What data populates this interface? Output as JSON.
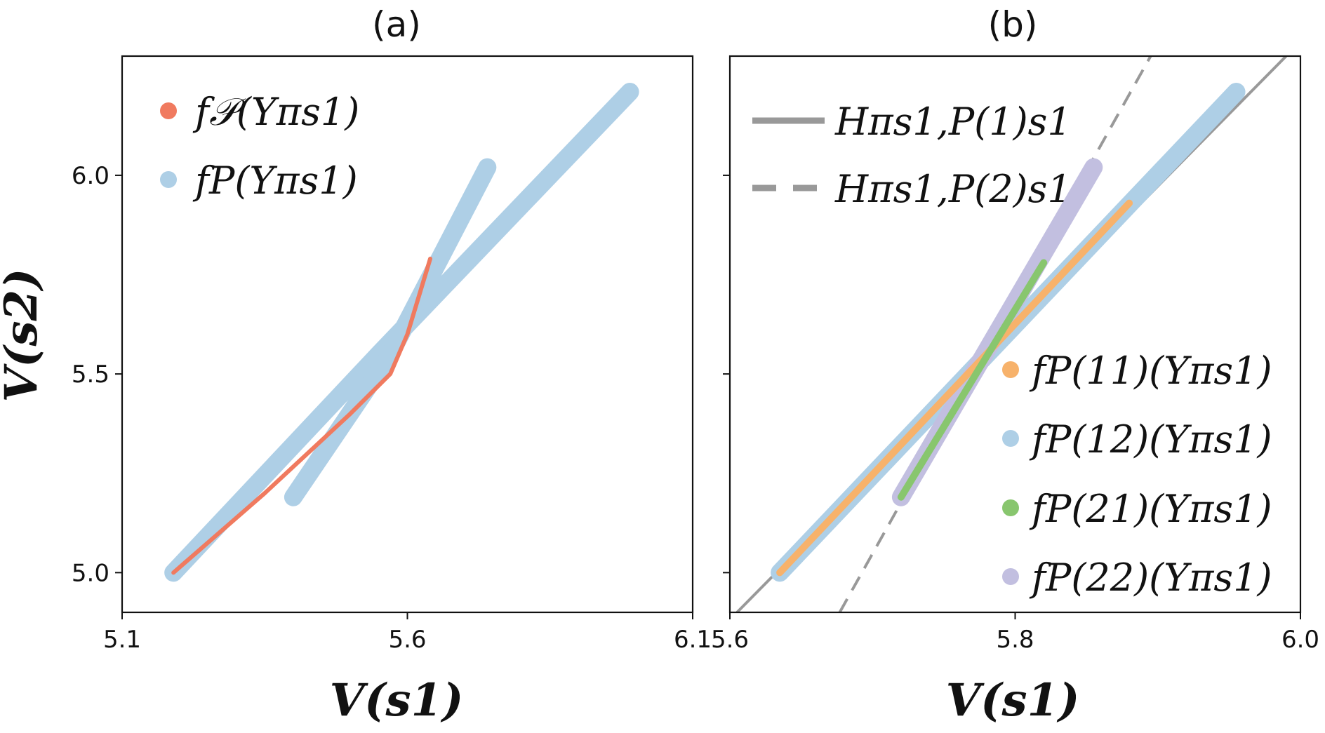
{
  "chart_data": [
    {
      "type": "line",
      "title": "(a)",
      "xlabel": "V(s1)",
      "ylabel": "V(s2)",
      "xlim": [
        5.1,
        6.1
      ],
      "ylim": [
        4.9,
        6.3
      ],
      "xticks": [
        "5.1",
        "5.6",
        "6.1"
      ],
      "yticks": [
        "5.0",
        "5.5",
        "6.0"
      ],
      "legend_position": "top-left",
      "series": [
        {
          "name": "f𝒫(Yπs1)",
          "color": "#f07a5f",
          "style": "thin",
          "points": [
            [
              5.19,
              5.0
            ],
            [
              5.35,
              5.2
            ],
            [
              5.5,
              5.4
            ],
            [
              5.57,
              5.5
            ],
            [
              5.6,
              5.6
            ],
            [
              5.64,
              5.79
            ]
          ]
        },
        {
          "name": "fP(Yπs1)",
          "color": "#aecfe6",
          "style": "thick",
          "points": [
            [
              5.19,
              5.0
            ],
            [
              5.55,
              5.55
            ],
            [
              5.99,
              6.21
            ]
          ]
        },
        {
          "name": "",
          "color": "#aecfe6",
          "style": "thick",
          "points": [
            [
              5.4,
              5.19
            ],
            [
              5.57,
              5.55
            ],
            [
              5.74,
              6.02
            ]
          ]
        }
      ]
    },
    {
      "type": "line",
      "title": "(b)",
      "xlabel": "V(s1)",
      "ylabel": "",
      "xlim": [
        5.6,
        6.0
      ],
      "ylim": [
        4.9,
        6.3
      ],
      "xticks": [
        "5.6",
        "5.8",
        "6.0"
      ],
      "yticks": [],
      "legend_position": "top-left and lower-right",
      "hyperplanes": [
        {
          "name": "Hπs1,P(1)s1",
          "color": "#999999",
          "dash": "solid",
          "points": [
            [
              5.605,
              4.9
            ],
            [
              5.99,
              6.3
            ]
          ]
        },
        {
          "name": "Hπs1,P(2)s1",
          "color": "#999999",
          "dash": "dashed",
          "points": [
            [
              5.677,
              4.9
            ],
            [
              5.895,
              6.3
            ]
          ]
        }
      ],
      "series": [
        {
          "name": "fP(11)(Yπs1)",
          "color": "#f7b26b",
          "style": "medium",
          "points": [
            [
              5.635,
              5.0
            ],
            [
              5.88,
              5.93
            ]
          ]
        },
        {
          "name": "fP(12)(Yπs1)",
          "color": "#aecfe6",
          "style": "thick",
          "points": [
            [
              5.635,
              5.0
            ],
            [
              5.955,
              6.21
            ]
          ]
        },
        {
          "name": "fP(21)(Yπs1)",
          "color": "#88c66e",
          "style": "medium",
          "points": [
            [
              5.72,
              5.19
            ],
            [
              5.82,
              5.78
            ]
          ]
        },
        {
          "name": "fP(22)(Yπs1)",
          "color": "#c2bfe0",
          "style": "thick",
          "points": [
            [
              5.72,
              5.19
            ],
            [
              5.855,
              6.02
            ]
          ]
        }
      ]
    }
  ]
}
